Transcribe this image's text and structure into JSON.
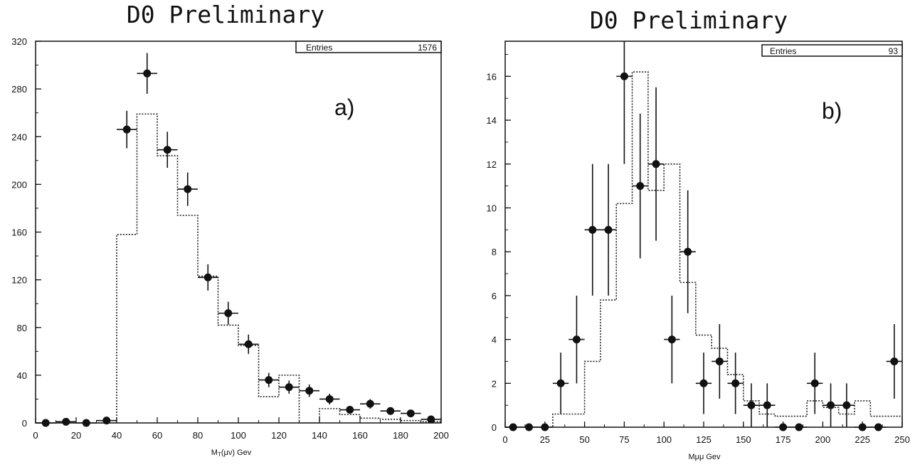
{
  "chart_data": [
    {
      "type": "histogram",
      "title": "D0 Preliminary",
      "panel_label": "a)",
      "xlabel": "M_T(μν) Gev",
      "xlim": [
        0,
        200
      ],
      "ylim": [
        0,
        320
      ],
      "xticks": [
        0,
        20,
        40,
        60,
        80,
        100,
        120,
        140,
        160,
        180,
        200
      ],
      "yticks": [
        0,
        40,
        80,
        120,
        160,
        200,
        240,
        280,
        320
      ],
      "stats_box": {
        "label": "Entries",
        "value": "1576"
      },
      "bin_width": 10,
      "data_points": {
        "x": [
          5,
          15,
          25,
          35,
          45,
          55,
          65,
          75,
          85,
          95,
          105,
          115,
          125,
          135,
          145,
          155,
          165,
          175,
          185,
          195
        ],
        "y": [
          0,
          1,
          0,
          2,
          246,
          293,
          229,
          196,
          122,
          92,
          66,
          36,
          30,
          27,
          20,
          11,
          16,
          10,
          8,
          3
        ],
        "yerr": [
          0,
          1,
          0,
          1.4,
          15.7,
          17.1,
          15.1,
          14,
          11,
          9.6,
          8.1,
          6,
          5.5,
          5.2,
          4.5,
          3.3,
          4,
          3.2,
          2.8,
          1.7
        ]
      },
      "mc_histogram": {
        "edges": [
          0,
          10,
          20,
          30,
          40,
          50,
          60,
          70,
          80,
          90,
          100,
          110,
          120,
          130,
          140,
          150,
          160,
          170,
          180,
          190,
          200
        ],
        "values": [
          0,
          0,
          0,
          0,
          158,
          259,
          224,
          174,
          123,
          82,
          65,
          22,
          40,
          0,
          12,
          7,
          4,
          3,
          2,
          1
        ]
      }
    },
    {
      "type": "histogram",
      "title": "D0 Preliminary",
      "panel_label": "b)",
      "xlabel": "Mμμ Gev",
      "xlim": [
        0,
        250
      ],
      "ylim": [
        0,
        17.6
      ],
      "xticks": [
        0,
        25,
        50,
        75,
        100,
        125,
        150,
        175,
        200,
        225,
        250
      ],
      "yticks": [
        0,
        2,
        4,
        6,
        8,
        10,
        12,
        14,
        16
      ],
      "stats_box": {
        "label": "Entries",
        "value": "93"
      },
      "bin_width": 10,
      "data_points": {
        "x": [
          5,
          15,
          25,
          35,
          45,
          55,
          65,
          75,
          85,
          95,
          105,
          115,
          125,
          135,
          145,
          155,
          165,
          175,
          185,
          195,
          205,
          215,
          225,
          235,
          245
        ],
        "y": [
          0,
          0,
          0,
          2,
          4,
          9,
          9,
          16,
          11,
          12,
          4,
          8,
          2,
          3,
          2,
          1,
          1,
          0,
          0,
          2,
          1,
          1,
          0,
          0,
          3
        ],
        "yerr": [
          0,
          0,
          0,
          1.4,
          2,
          3,
          3,
          4,
          3.3,
          3.5,
          2,
          2.8,
          1.4,
          1.7,
          1.4,
          1,
          1,
          0,
          0,
          1.4,
          1,
          1,
          0,
          0,
          1.7
        ]
      },
      "mc_histogram": {
        "edges": [
          0,
          10,
          20,
          30,
          40,
          50,
          60,
          70,
          80,
          90,
          100,
          110,
          120,
          130,
          140,
          150,
          160,
          170,
          180,
          190,
          200,
          210,
          220,
          230,
          240,
          250
        ],
        "values": [
          0,
          0,
          0,
          0.6,
          0.6,
          3,
          5.8,
          10.2,
          16.2,
          10.8,
          12,
          6.6,
          4.2,
          3.6,
          2.4,
          1.2,
          0.6,
          0.5,
          0.5,
          1.2,
          0.9,
          0.6,
          1.2,
          0.5,
          0.5
        ]
      }
    }
  ]
}
